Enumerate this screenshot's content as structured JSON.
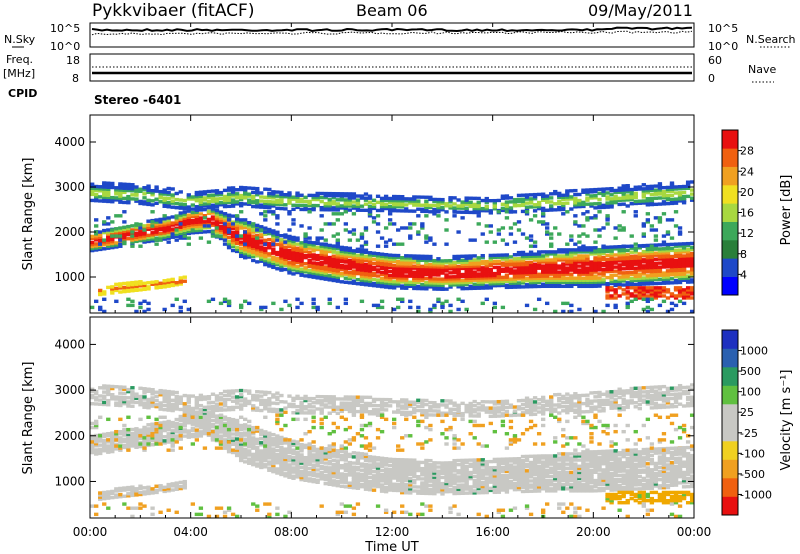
{
  "header": {
    "station": "Pykkvibaer (fitACF)",
    "beam": "Beam 06",
    "date": "09/May/2011"
  },
  "params": {
    "nsky_label": "N.Sky",
    "nsearch_label": "N.Search",
    "freq_label_1": "Freq.",
    "freq_label_2": "[MHz]",
    "nave_label": "Nave",
    "cpid_label": "CPID",
    "cpid_value": "Stereo -6401",
    "noise_left_ticks": [
      "10^5",
      "10^0"
    ],
    "noise_right_ticks": [
      "10^5",
      "10^0"
    ],
    "freq_left_ticks": [
      "18",
      "8"
    ],
    "nave_right_ticks": [
      "60",
      "0"
    ]
  },
  "x_axis": {
    "label": "Time UT",
    "ticks": [
      "00:00",
      "04:00",
      "08:00",
      "12:00",
      "16:00",
      "20:00",
      "00:00"
    ]
  },
  "panels": {
    "power": {
      "ylabel": "Slant Range [km]",
      "yticks": [
        "4000",
        "3000",
        "2000",
        "1000"
      ],
      "colorbar_label": "Power [dB]",
      "colorbar_ticks": [
        "28",
        "24",
        "20",
        "16",
        "12",
        "8",
        "4"
      ],
      "colorbar_colors": [
        "#0000ff",
        "#1e48c8",
        "#2a7f3a",
        "#3ca85a",
        "#a8d840",
        "#f0e020",
        "#f0a020",
        "#f06010",
        "#e81010"
      ]
    },
    "velocity": {
      "ylabel": "Slant Range [km]",
      "yticks": [
        "4000",
        "3000",
        "2000",
        "1000"
      ],
      "colorbar_label": "Velocity [m s⁻¹]",
      "colorbar_ticks": [
        "1000",
        "500",
        "100",
        "25",
        "-25",
        "-100",
        "-500",
        "-1000"
      ],
      "colorbar_colors": [
        "#e81010",
        "#f06010",
        "#f0a020",
        "#f0d020",
        "#c8c8c4",
        "#c8c8c4",
        "#60c040",
        "#2a9a60",
        "#2a60b0",
        "#1e30c0"
      ]
    }
  },
  "chart_data": {
    "type": "heatmap",
    "x_range_hours": [
      0,
      24
    ],
    "y_range_km": [
      200,
      4600
    ],
    "backscatter_bands": [
      {
        "name": "main",
        "t": [
          0,
          1,
          2,
          3,
          4,
          4.8,
          5.5,
          6,
          8,
          10,
          12,
          14,
          16,
          18,
          20,
          22,
          24
        ],
        "r": [
          1800,
          1900,
          2000,
          2100,
          2250,
          2300,
          2050,
          1900,
          1500,
          1300,
          1150,
          1100,
          1150,
          1200,
          1250,
          1300,
          1350
        ],
        "halfwidth": [
          120,
          130,
          130,
          140,
          150,
          160,
          220,
          250,
          240,
          230,
          220,
          210,
          220,
          230,
          260,
          260,
          260
        ]
      },
      {
        "name": "upper",
        "t": [
          0,
          2,
          4,
          5,
          6,
          8,
          12,
          16,
          20,
          24
        ],
        "r": [
          2900,
          2850,
          2700,
          2750,
          2800,
          2700,
          2650,
          2600,
          2750,
          2900
        ],
        "halfwidth": [
          180,
          200,
          180,
          180,
          200,
          180,
          160,
          160,
          200,
          220
        ]
      },
      {
        "name": "near",
        "t": [
          0.3,
          1,
          2,
          3,
          3.8
        ],
        "r": [
          700,
          760,
          820,
          880,
          950
        ],
        "halfwidth": [
          80,
          90,
          90,
          80,
          70
        ]
      }
    ]
  }
}
